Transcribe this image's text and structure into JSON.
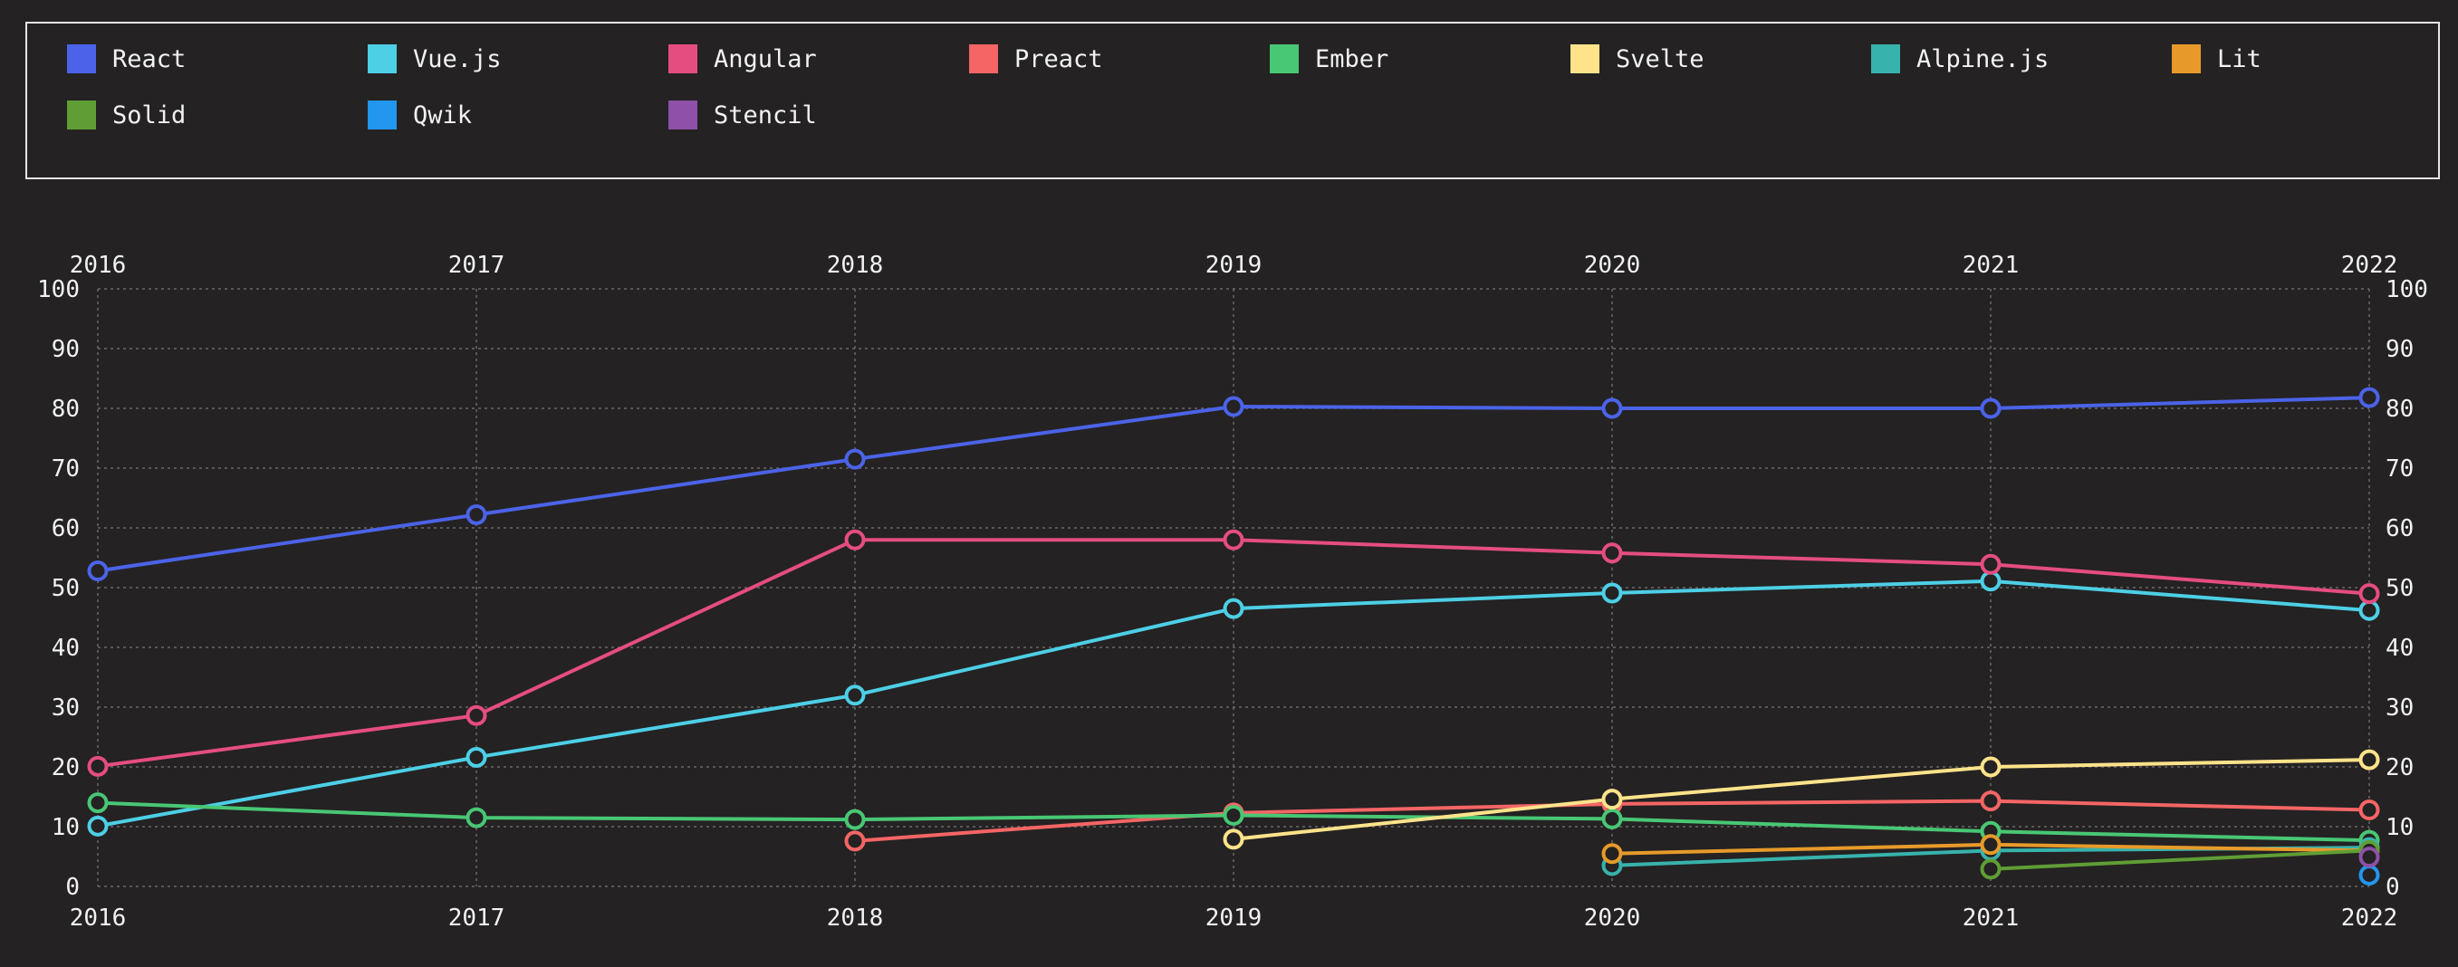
{
  "chart_data": {
    "type": "line",
    "title": "",
    "xlabel": "",
    "ylabel": "",
    "x": [
      "2016",
      "2017",
      "2018",
      "2019",
      "2020",
      "2021",
      "2022"
    ],
    "ylim": [
      0,
      100
    ],
    "yticks": [
      0,
      10,
      20,
      30,
      40,
      50,
      60,
      70,
      80,
      90,
      100
    ],
    "grid": true,
    "legend_position": "top",
    "series": [
      {
        "name": "React",
        "color": "#4b63e8",
        "values": [
          52.8,
          62.2,
          71.5,
          80.3,
          80.0,
          80.0,
          81.8
        ]
      },
      {
        "name": "Vue.js",
        "color": "#4dcfe6",
        "values": [
          10.1,
          21.6,
          32.0,
          46.5,
          49.1,
          51.1,
          46.2
        ]
      },
      {
        "name": "Angular",
        "color": "#e54d80",
        "values": [
          20.1,
          28.6,
          58.0,
          58.0,
          55.8,
          53.9,
          49.0
        ]
      },
      {
        "name": "Preact",
        "color": "#f56565",
        "values": [
          null,
          null,
          7.6,
          12.3,
          13.8,
          14.3,
          12.8
        ]
      },
      {
        "name": "Ember",
        "color": "#48c774",
        "values": [
          14.0,
          11.5,
          11.2,
          11.9,
          11.3,
          9.2,
          7.7
        ]
      },
      {
        "name": "Svelte",
        "color": "#ffe38a",
        "values": [
          null,
          null,
          null,
          7.9,
          14.6,
          20.0,
          21.2
        ]
      },
      {
        "name": "Alpine.js",
        "color": "#38b2ac",
        "values": [
          null,
          null,
          null,
          null,
          3.5,
          6.0,
          6.5
        ]
      },
      {
        "name": "Lit",
        "color": "#e79a2a",
        "values": [
          null,
          null,
          null,
          null,
          5.5,
          7.0,
          6.0
        ]
      },
      {
        "name": "Solid",
        "color": "#5f9e35",
        "values": [
          null,
          null,
          null,
          null,
          null,
          2.9,
          6.0
        ]
      },
      {
        "name": "Qwik",
        "color": "#2396f0",
        "values": [
          null,
          null,
          null,
          null,
          null,
          null,
          1.9
        ]
      },
      {
        "name": "Stencil",
        "color": "#8e50a8",
        "values": [
          null,
          null,
          null,
          null,
          null,
          null,
          4.9
        ]
      }
    ]
  }
}
